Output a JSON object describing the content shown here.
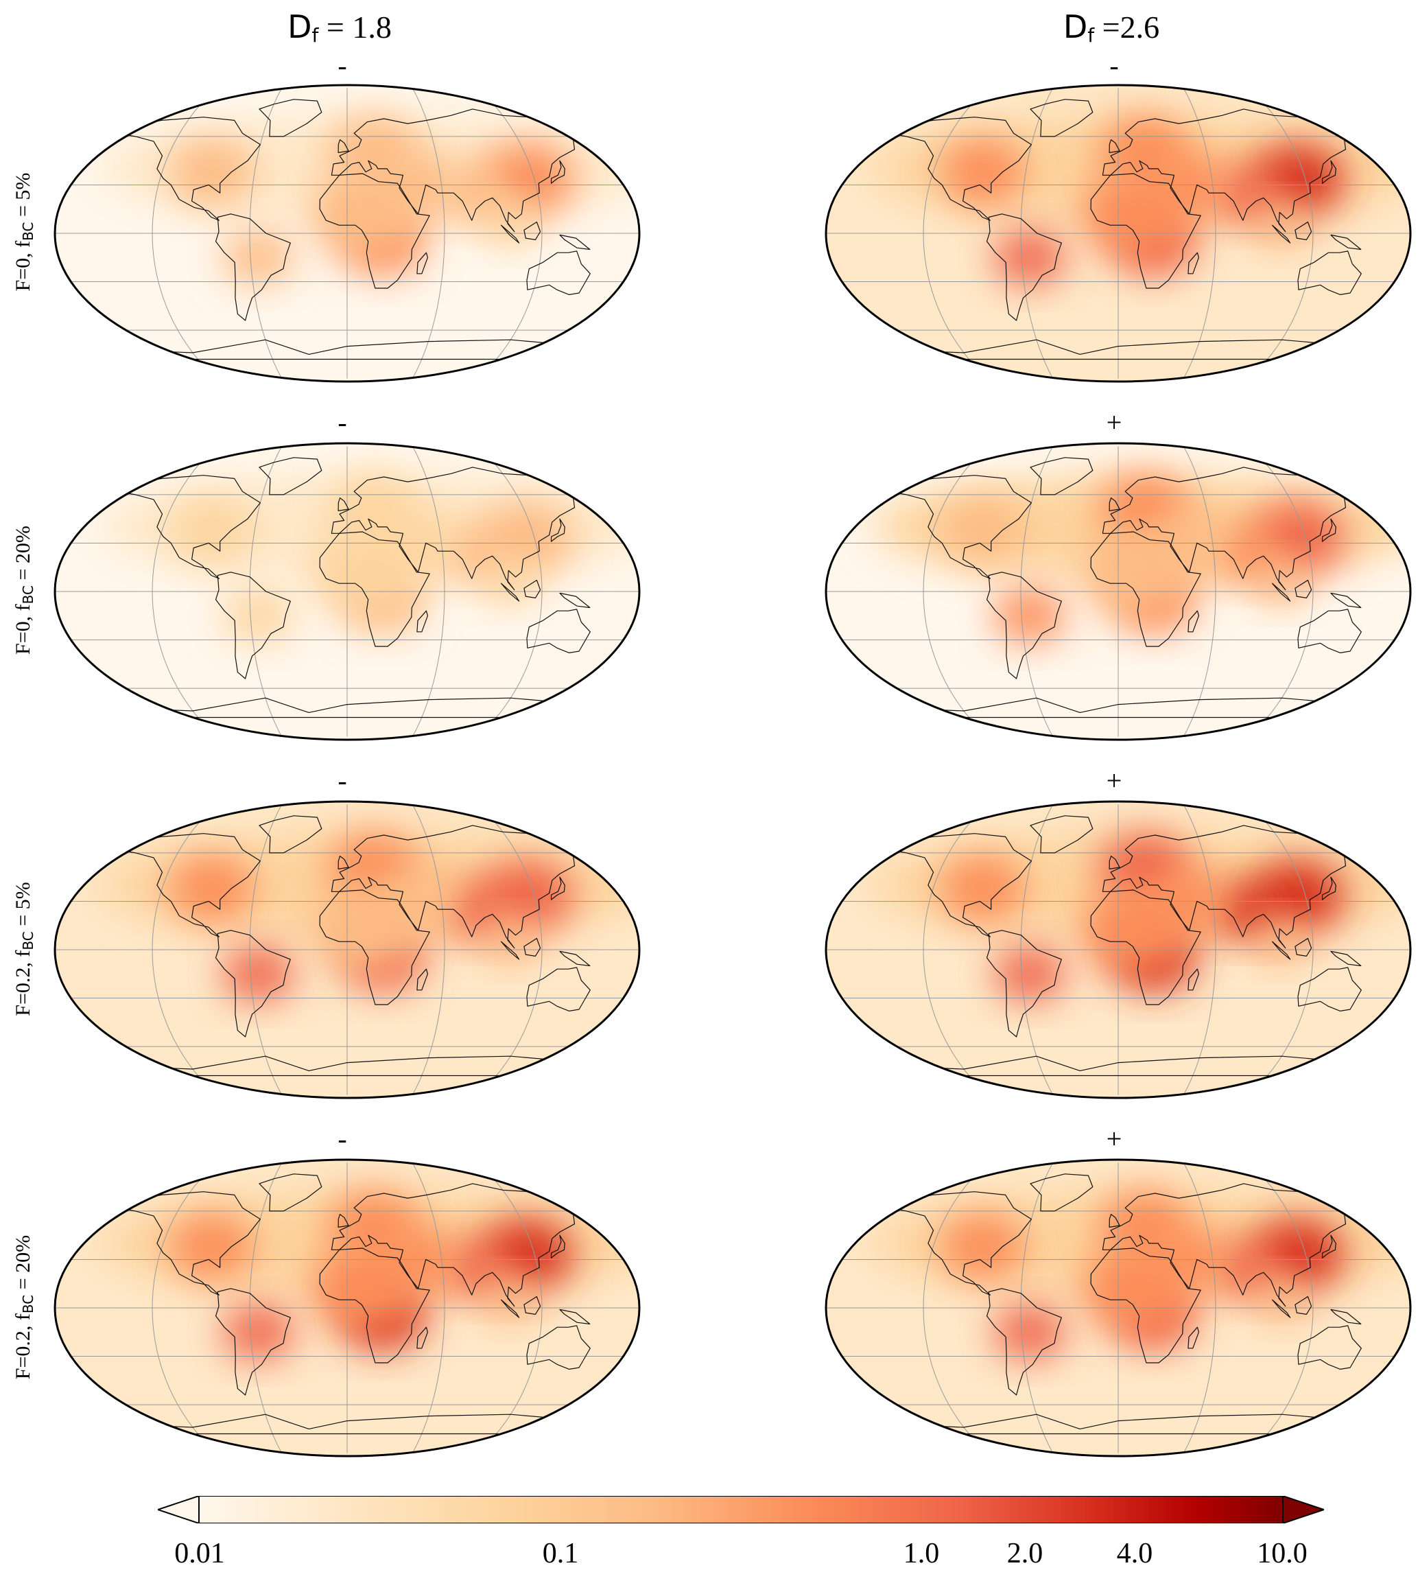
{
  "columns": [
    {
      "title_main": "D",
      "title_sub": "f",
      "title_rest": " = 1.8"
    },
    {
      "title_main": "D",
      "title_sub": "f",
      "title_rest": " =2.6"
    }
  ],
  "rows": [
    {
      "label_pre": "F=0, f",
      "label_sub": "BC",
      "label_post": " = 5%",
      "signs": [
        "-",
        "-"
      ],
      "intensity": [
        0.45,
        0.75
      ]
    },
    {
      "label_pre": "F=0, f",
      "label_sub": "BC",
      "label_post": " = 20%",
      "signs": [
        "-",
        "+"
      ],
      "intensity": [
        0.28,
        0.62
      ]
    },
    {
      "label_pre": "F=0.2, f",
      "label_sub": "BC",
      "label_post": " = 5%",
      "signs": [
        "-",
        "+"
      ],
      "intensity": [
        0.72,
        0.88
      ]
    },
    {
      "label_pre": "F=0.2, f",
      "label_sub": "BC",
      "label_post": " = 20%",
      "signs": [
        "-",
        "+"
      ],
      "intensity": [
        0.82,
        0.8
      ]
    }
  ],
  "colorbar": {
    "colormap": "OrRd",
    "extend": "both",
    "scale": "log",
    "range": [
      0.01,
      10.0
    ],
    "ticks": [
      "0.01",
      "0.1",
      "1.0",
      "2.0",
      "4.0",
      "10.0"
    ],
    "tick_values": [
      0.01,
      0.1,
      1.0,
      2.0,
      4.0,
      10.0
    ]
  },
  "projection": "robinson",
  "hotspots": [
    "East Asia",
    "South Asia",
    "Central Africa",
    "South America",
    "Europe",
    "North America"
  ]
}
